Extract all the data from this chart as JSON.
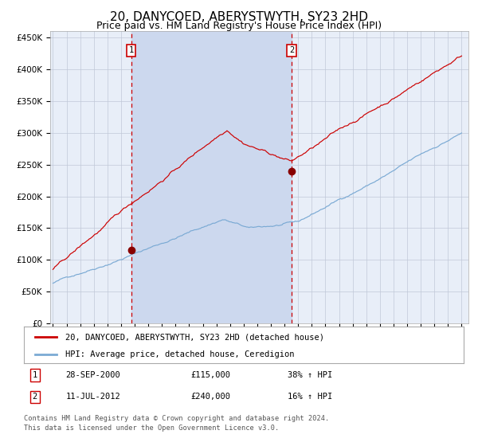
{
  "title": "20, DANYCOED, ABERYSTWYTH, SY23 2HD",
  "subtitle": "Price paid vs. HM Land Registry's House Price Index (HPI)",
  "ylim": [
    0,
    460000
  ],
  "yticks": [
    0,
    50000,
    100000,
    150000,
    200000,
    250000,
    300000,
    350000,
    400000,
    450000
  ],
  "xlim_start": 1994.8,
  "xlim_end": 2025.5,
  "background_color": "#ffffff",
  "plot_bg_color": "#e8eef8",
  "grid_color": "#c0c8d8",
  "hpi_color": "#7baad4",
  "price_color": "#cc0000",
  "shade_color": "#ccd8ee",
  "shade_start": 2000.74,
  "shade_end": 2012.53,
  "marker1_x": 2000.74,
  "marker1_y": 115000,
  "marker1_label": "1",
  "marker1_date": "28-SEP-2000",
  "marker1_price": "£115,000",
  "marker1_hpi": "38% ↑ HPI",
  "marker2_x": 2012.53,
  "marker2_y": 240000,
  "marker2_label": "2",
  "marker2_date": "11-JUL-2012",
  "marker2_price": "£240,000",
  "marker2_hpi": "16% ↑ HPI",
  "legend_line1": "20, DANYCOED, ABERYSTWYTH, SY23 2HD (detached house)",
  "legend_line2": "HPI: Average price, detached house, Ceredigion",
  "footer1": "Contains HM Land Registry data © Crown copyright and database right 2024.",
  "footer2": "This data is licensed under the Open Government Licence v3.0.",
  "title_fontsize": 11,
  "subtitle_fontsize": 9,
  "tick_fontsize": 7.5
}
